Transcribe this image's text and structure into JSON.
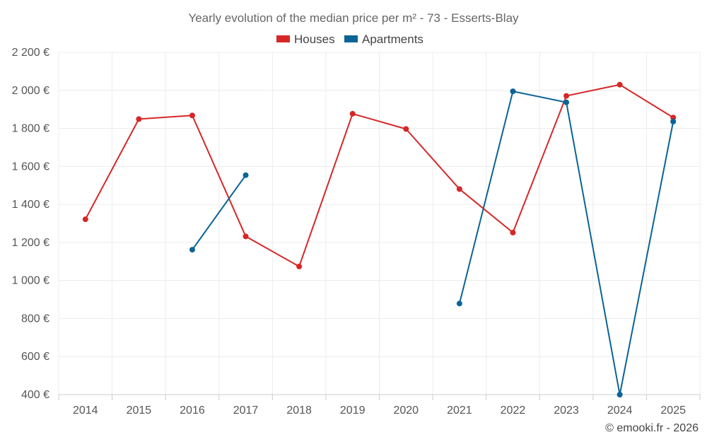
{
  "chart_data": {
    "type": "line",
    "title": "Yearly evolution of the median price per m² - 73 - Esserts-Blay",
    "xlabel": "",
    "ylabel": "",
    "categories": [
      "2014",
      "2015",
      "2016",
      "2017",
      "2018",
      "2019",
      "2020",
      "2021",
      "2022",
      "2023",
      "2024",
      "2025"
    ],
    "ylim": [
      400,
      2200
    ],
    "yticks": [
      400,
      600,
      800,
      1000,
      1200,
      1400,
      1600,
      1800,
      2000,
      2200
    ],
    "ytick_labels": [
      "400 €",
      "600 €",
      "800 €",
      "1 000 €",
      "1 200 €",
      "1 400 €",
      "1 600 €",
      "1 800 €",
      "2 000 €",
      "2 200 €"
    ],
    "grid": true,
    "legend_position": "top-center",
    "series": [
      {
        "name": "Houses",
        "color": "#d62728",
        "values": [
          1322,
          1849,
          1868,
          1232,
          1074,
          1877,
          1797,
          1481,
          1252,
          1971,
          2030,
          1857
        ]
      },
      {
        "name": "Apartments",
        "color": "#0a6496",
        "values": [
          null,
          null,
          1162,
          1554,
          null,
          null,
          null,
          879,
          1995,
          1937,
          400,
          1836
        ]
      }
    ],
    "credit": "© emooki.fr - 2026"
  }
}
